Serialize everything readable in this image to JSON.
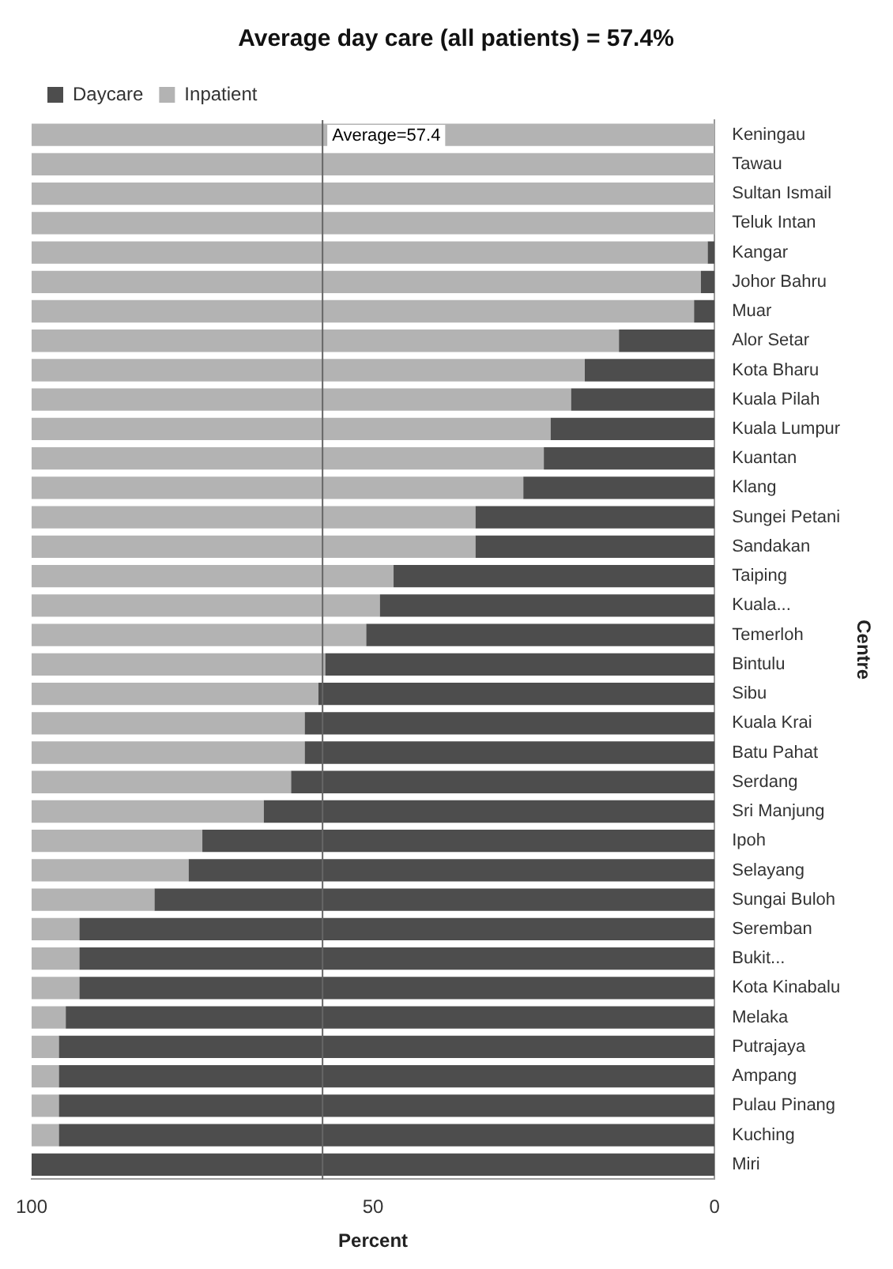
{
  "chart_data": {
    "type": "bar",
    "orientation": "horizontal",
    "stacked": true,
    "title": "Average day care (all patients) = 57.4%",
    "xlabel": "Percent",
    "ylabel": "Centre",
    "categories": [
      "Keningau",
      "Tawau",
      "Sultan Ismail",
      "Teluk Intan",
      "Kangar",
      "Johor Bahru",
      "Muar",
      "Alor Setar",
      "Kota Bharu",
      "Kuala Pilah",
      "Kuala Lumpur",
      "Kuantan",
      "Klang",
      "Sungei Petani",
      "Sandakan",
      "Taiping",
      "Kuala...",
      "Temerloh",
      "Bintulu",
      "Sibu",
      "Kuala Krai",
      "Batu Pahat",
      "Serdang",
      "Sri Manjung",
      "Ipoh",
      "Selayang",
      "Sungai Buloh",
      "Seremban",
      "Bukit...",
      "Kota Kinabalu",
      "Melaka",
      "Putrajaya",
      "Ampang",
      "Pulau Pinang",
      "Kuching",
      "Miri"
    ],
    "series": [
      {
        "name": "Daycare",
        "color": "#4d4d4d",
        "values": [
          0,
          0,
          0,
          0,
          1,
          2,
          3,
          14,
          19,
          21,
          24,
          25,
          28,
          35,
          35,
          47,
          49,
          51,
          57,
          58,
          60,
          60,
          62,
          66,
          75,
          77,
          82,
          93,
          93,
          93,
          95,
          96,
          96,
          96,
          96,
          100
        ]
      },
      {
        "name": "Inpatient",
        "color": "#b3b3b3",
        "values": [
          100,
          100,
          100,
          100,
          99,
          98,
          97,
          86,
          81,
          79,
          76,
          75,
          72,
          65,
          65,
          53,
          51,
          49,
          43,
          42,
          40,
          40,
          38,
          34,
          25,
          23,
          18,
          7,
          7,
          7,
          5,
          4,
          4,
          4,
          4,
          0
        ]
      }
    ],
    "xlim": [
      100,
      0
    ],
    "xticks": [
      0,
      50,
      100
    ],
    "grid": false,
    "legend": "top left",
    "ref_lines": [
      {
        "axis": "x",
        "value": 57.4,
        "label": "Average=57.4",
        "color": "#666666"
      }
    ]
  }
}
